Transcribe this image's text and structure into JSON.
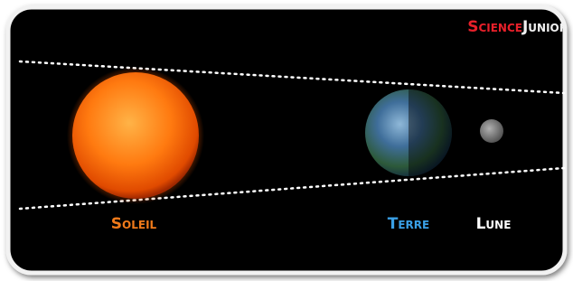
{
  "logo": {
    "part1": "Science",
    "part2": "Junior"
  },
  "labels": {
    "sun": "Soleil",
    "earth": "Terre",
    "moon": "Lune"
  }
}
